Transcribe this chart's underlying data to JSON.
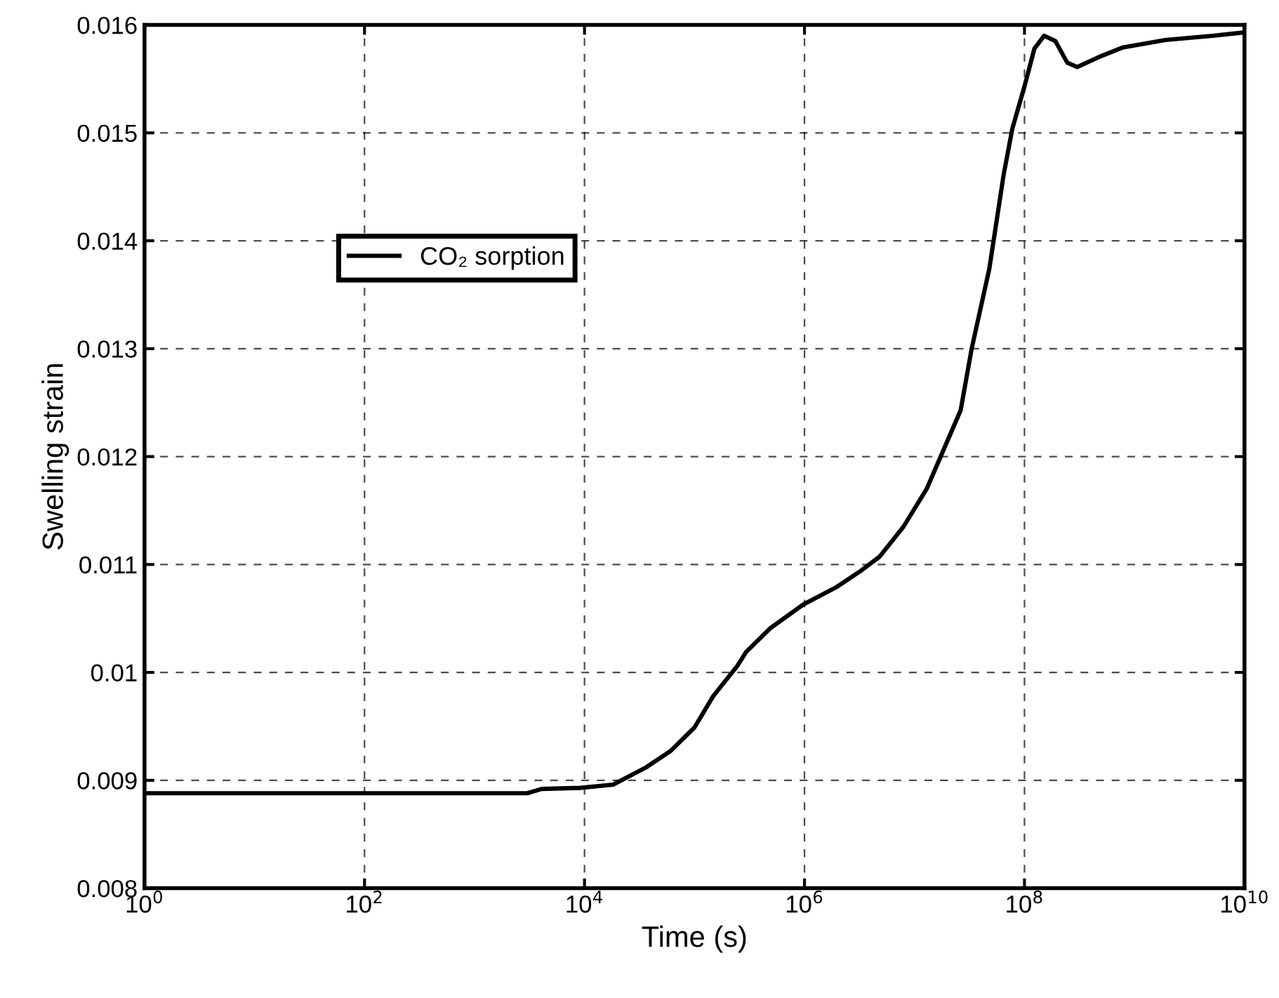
{
  "chart_data": {
    "type": "line",
    "xlabel": "Time (s)",
    "ylabel": "Swelling strain",
    "log": "x",
    "grid": true,
    "legend": "top left",
    "line_style": "solid",
    "marker": "none",
    "xlim": [
      1,
      10000000000
    ],
    "ylim": [
      0.008,
      0.016
    ],
    "xticks": [
      {
        "value": 1,
        "label": "10$^{0}$"
      },
      {
        "value": 100,
        "label": "10$^{2}$"
      },
      {
        "value": 10000,
        "label": "10$^{4}$"
      },
      {
        "value": 1000000,
        "label": "10$^{6}$"
      },
      {
        "value": 100000000,
        "label": "10$^{8}$"
      },
      {
        "value": 10000000000,
        "label": "10$^{10}$"
      }
    ],
    "yticks": [
      0.008,
      0.009,
      0.01,
      0.011,
      0.012,
      0.013,
      0.014,
      0.015,
      0.016
    ],
    "series": [
      {
        "name": "CO₂ sorption",
        "color": "#000000",
        "x": [
          1,
          617,
          3020,
          4070,
          9120,
          18200,
          36300,
          60300,
          100000,
          148000,
          245000,
          295000,
          490000,
          977000,
          1950000,
          3240000,
          4790000,
          7940000,
          12900000,
          26300000,
          33100000,
          47900000,
          64600000,
          77600000,
          100000000,
          123000000,
          151000000,
          191000000,
          245000000,
          302000000,
          468000000,
          776000000,
          1910000000,
          5130000000,
          9770000000
        ],
        "values": [
          0.00888,
          0.00888,
          0.00888,
          0.00892,
          0.00893,
          0.00896,
          0.00912,
          0.00927,
          0.00949,
          0.00978,
          0.01006,
          0.01019,
          0.01041,
          0.01063,
          0.01079,
          0.01094,
          0.01107,
          0.01135,
          0.0117,
          0.01243,
          0.013,
          0.01374,
          0.01461,
          0.01504,
          0.01543,
          0.01578,
          0.0159,
          0.01585,
          0.01565,
          0.01561,
          0.0157,
          0.01579,
          0.01586,
          0.0159,
          0.01593
        ]
      }
    ]
  }
}
